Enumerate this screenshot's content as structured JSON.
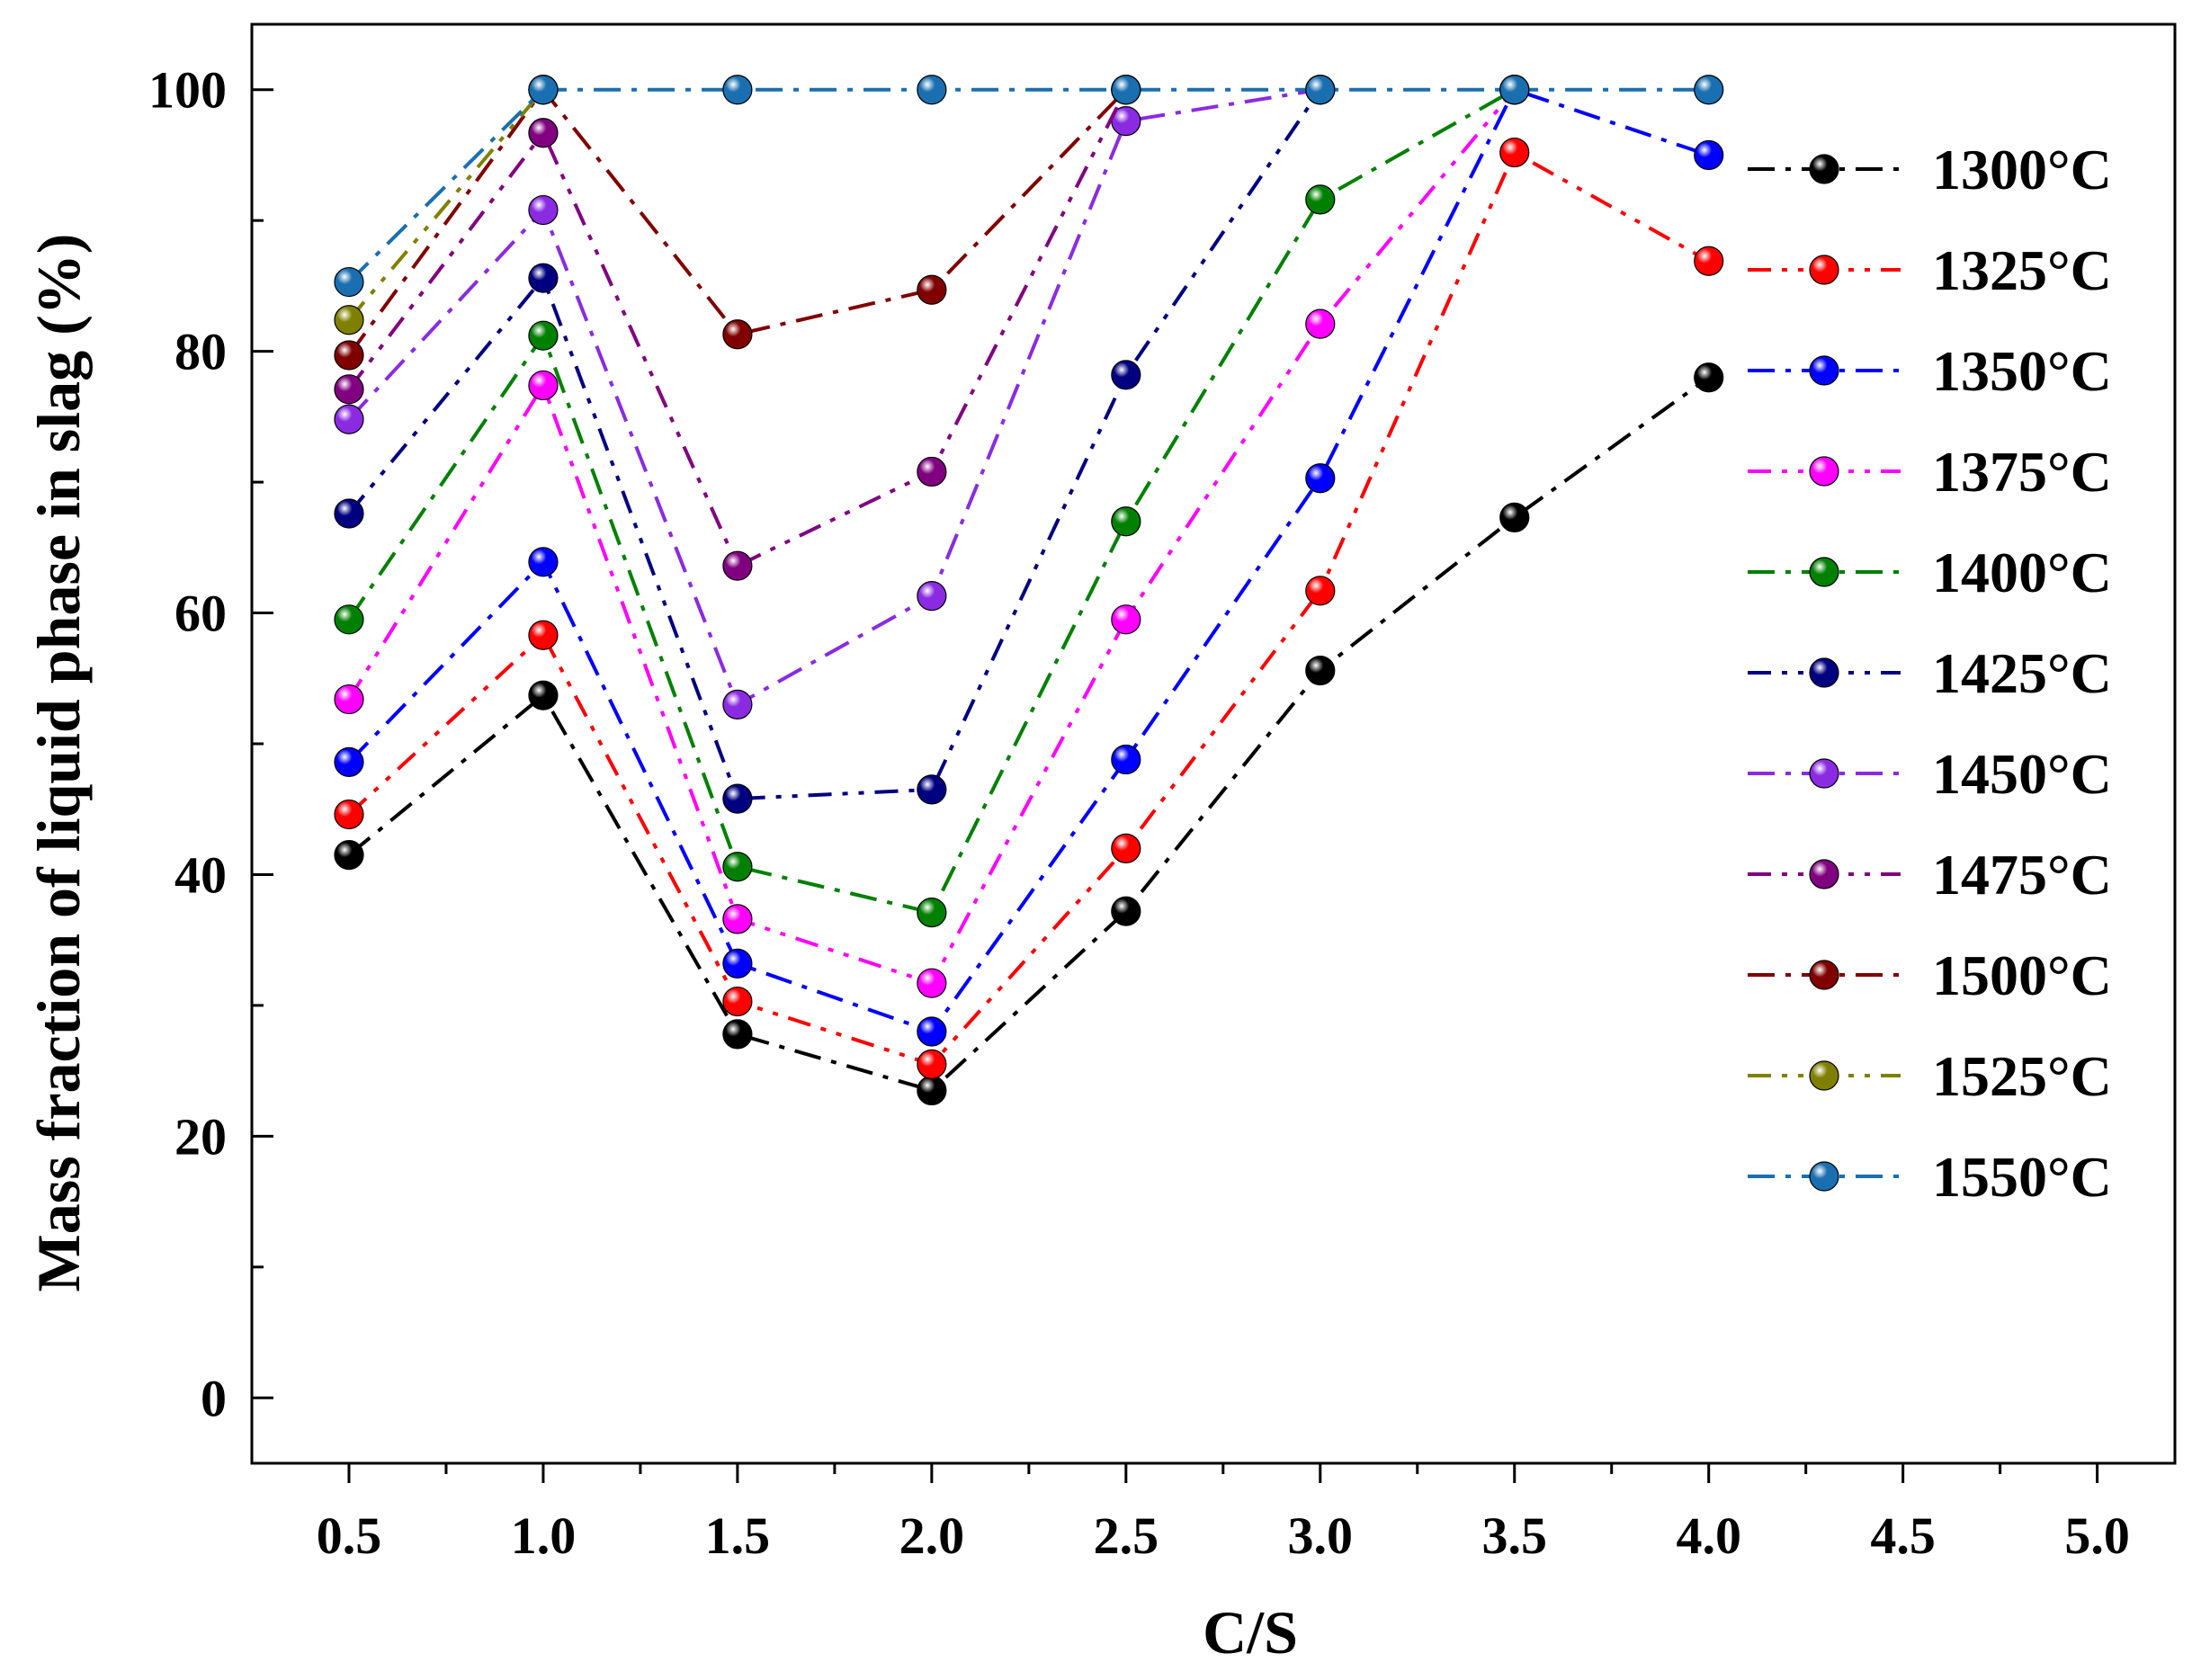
{
  "chart_data": {
    "type": "line",
    "title": "",
    "xlabel": "C/S",
    "ylabel": "Mass fraction of liquid phase in slag (%)",
    "xlim": [
      0.25,
      5.2
    ],
    "ylim": [
      -5,
      105
    ],
    "xticks": [
      0.5,
      1.0,
      1.5,
      2.0,
      2.5,
      3.0,
      3.5,
      4.0,
      4.5,
      5.0
    ],
    "xtick_labels": [
      "0.5",
      "1.0",
      "1.5",
      "2.0",
      "2.5",
      "3.0",
      "3.5",
      "4.0",
      "4.5",
      "5.0"
    ],
    "yticks": [
      0,
      20,
      40,
      60,
      80,
      100
    ],
    "ytick_labels": [
      "0",
      "20",
      "40",
      "60",
      "80",
      "100"
    ],
    "grid": false,
    "legend_position": "right",
    "series": [
      {
        "name": "1300°C",
        "color": "#000000",
        "x": [
          0.5,
          1.0,
          1.5,
          2.0,
          2.5,
          3.0,
          3.5,
          4.0
        ],
        "values": [
          41.5,
          53.7,
          27.8,
          23.5,
          37.2,
          55.6,
          67.3,
          78.0
        ]
      },
      {
        "name": "1325°C",
        "color": "#ff0000",
        "x": [
          0.5,
          1.0,
          1.5,
          2.0,
          2.5,
          3.0,
          3.5,
          4.0
        ],
        "values": [
          44.6,
          58.3,
          30.3,
          25.5,
          42.0,
          61.7,
          95.2,
          86.9
        ]
      },
      {
        "name": "1350°C",
        "color": "#0000ff",
        "x": [
          0.5,
          1.0,
          1.5,
          2.0,
          2.5,
          3.0,
          3.5,
          4.0
        ],
        "values": [
          48.6,
          63.9,
          33.2,
          28.0,
          48.8,
          70.3,
          100.0,
          95.0
        ]
      },
      {
        "name": "1375°C",
        "color": "#ff00ff",
        "x": [
          0.5,
          1.0,
          1.5,
          2.0,
          2.5,
          3.0,
          3.5
        ],
        "values": [
          53.4,
          77.4,
          36.6,
          31.7,
          59.5,
          82.1,
          100.0
        ]
      },
      {
        "name": "1400°C",
        "color": "#008000",
        "x": [
          0.5,
          1.0,
          1.5,
          2.0,
          2.5,
          3.0,
          3.5
        ],
        "values": [
          59.5,
          81.2,
          40.6,
          37.1,
          67.0,
          91.6,
          100.0
        ]
      },
      {
        "name": "1425°C",
        "color": "#000080",
        "x": [
          0.5,
          1.0,
          1.5,
          2.0,
          2.5,
          3.0
        ],
        "values": [
          67.6,
          85.6,
          45.8,
          46.5,
          78.2,
          100.0
        ]
      },
      {
        "name": "1450°C",
        "color": "#8a2be2",
        "x": [
          0.5,
          1.0,
          1.5,
          2.0,
          2.5,
          3.0
        ],
        "values": [
          74.8,
          90.8,
          53.0,
          61.3,
          97.6,
          100.0
        ]
      },
      {
        "name": "1475°C",
        "color": "#800080",
        "x": [
          0.5,
          1.0,
          1.5,
          2.0,
          2.5
        ],
        "values": [
          77.1,
          96.7,
          63.6,
          70.8,
          100.0
        ]
      },
      {
        "name": "1500°C",
        "color": "#800000",
        "x": [
          0.5,
          1.0,
          1.5,
          2.0,
          2.5
        ],
        "values": [
          79.7,
          100.0,
          81.3,
          84.7,
          100.0
        ]
      },
      {
        "name": "1525°C",
        "color": "#808000",
        "x": [
          0.5,
          1.0
        ],
        "values": [
          82.4,
          100.0
        ]
      },
      {
        "name": "1550°C",
        "color": "#1a6fb0",
        "x": [
          0.5,
          1.0,
          1.5,
          2.0,
          2.5,
          3.0,
          3.5,
          4.0
        ],
        "values": [
          85.3,
          100.0,
          100.0,
          100.0,
          100.0,
          100.0,
          100.0,
          100.0
        ]
      }
    ]
  }
}
